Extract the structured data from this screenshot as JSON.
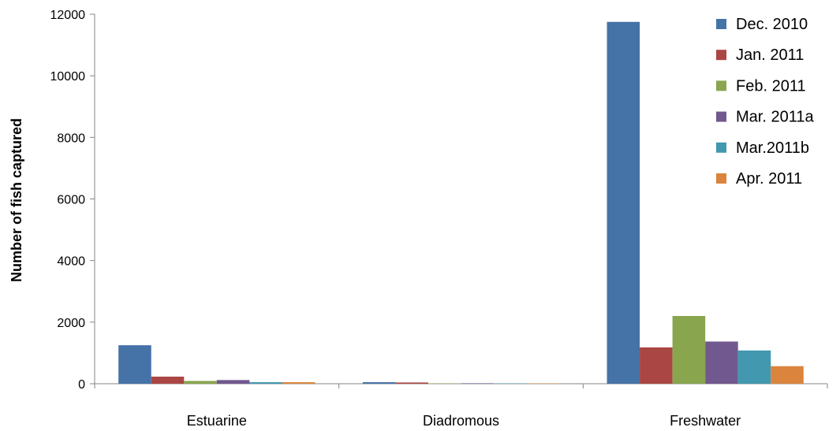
{
  "chart_data": {
    "type": "bar",
    "title": "",
    "xlabel": "",
    "ylabel": "Number of fish captured",
    "ylim": [
      0,
      12000
    ],
    "yticks": [
      0,
      2000,
      4000,
      6000,
      8000,
      10000,
      12000
    ],
    "grid": false,
    "legend_position": "top-right",
    "categories": [
      "Estuarine",
      "Diadromous",
      "Freshwater"
    ],
    "series": [
      {
        "name": "Dec. 2010",
        "color": "#4572A7",
        "values": [
          1250,
          50,
          11750
        ]
      },
      {
        "name": "Jan. 2011",
        "color": "#AA4643",
        "values": [
          230,
          40,
          1180
        ]
      },
      {
        "name": "Feb. 2011",
        "color": "#89A54E",
        "values": [
          90,
          10,
          2200
        ]
      },
      {
        "name": "Mar. 2011a",
        "color": "#71588F",
        "values": [
          120,
          15,
          1370
        ]
      },
      {
        "name": "Mar.2011b",
        "color": "#4198AF",
        "values": [
          50,
          10,
          1080
        ]
      },
      {
        "name": "Apr. 2011",
        "color": "#DB843D",
        "values": [
          50,
          10,
          570
        ]
      }
    ]
  }
}
